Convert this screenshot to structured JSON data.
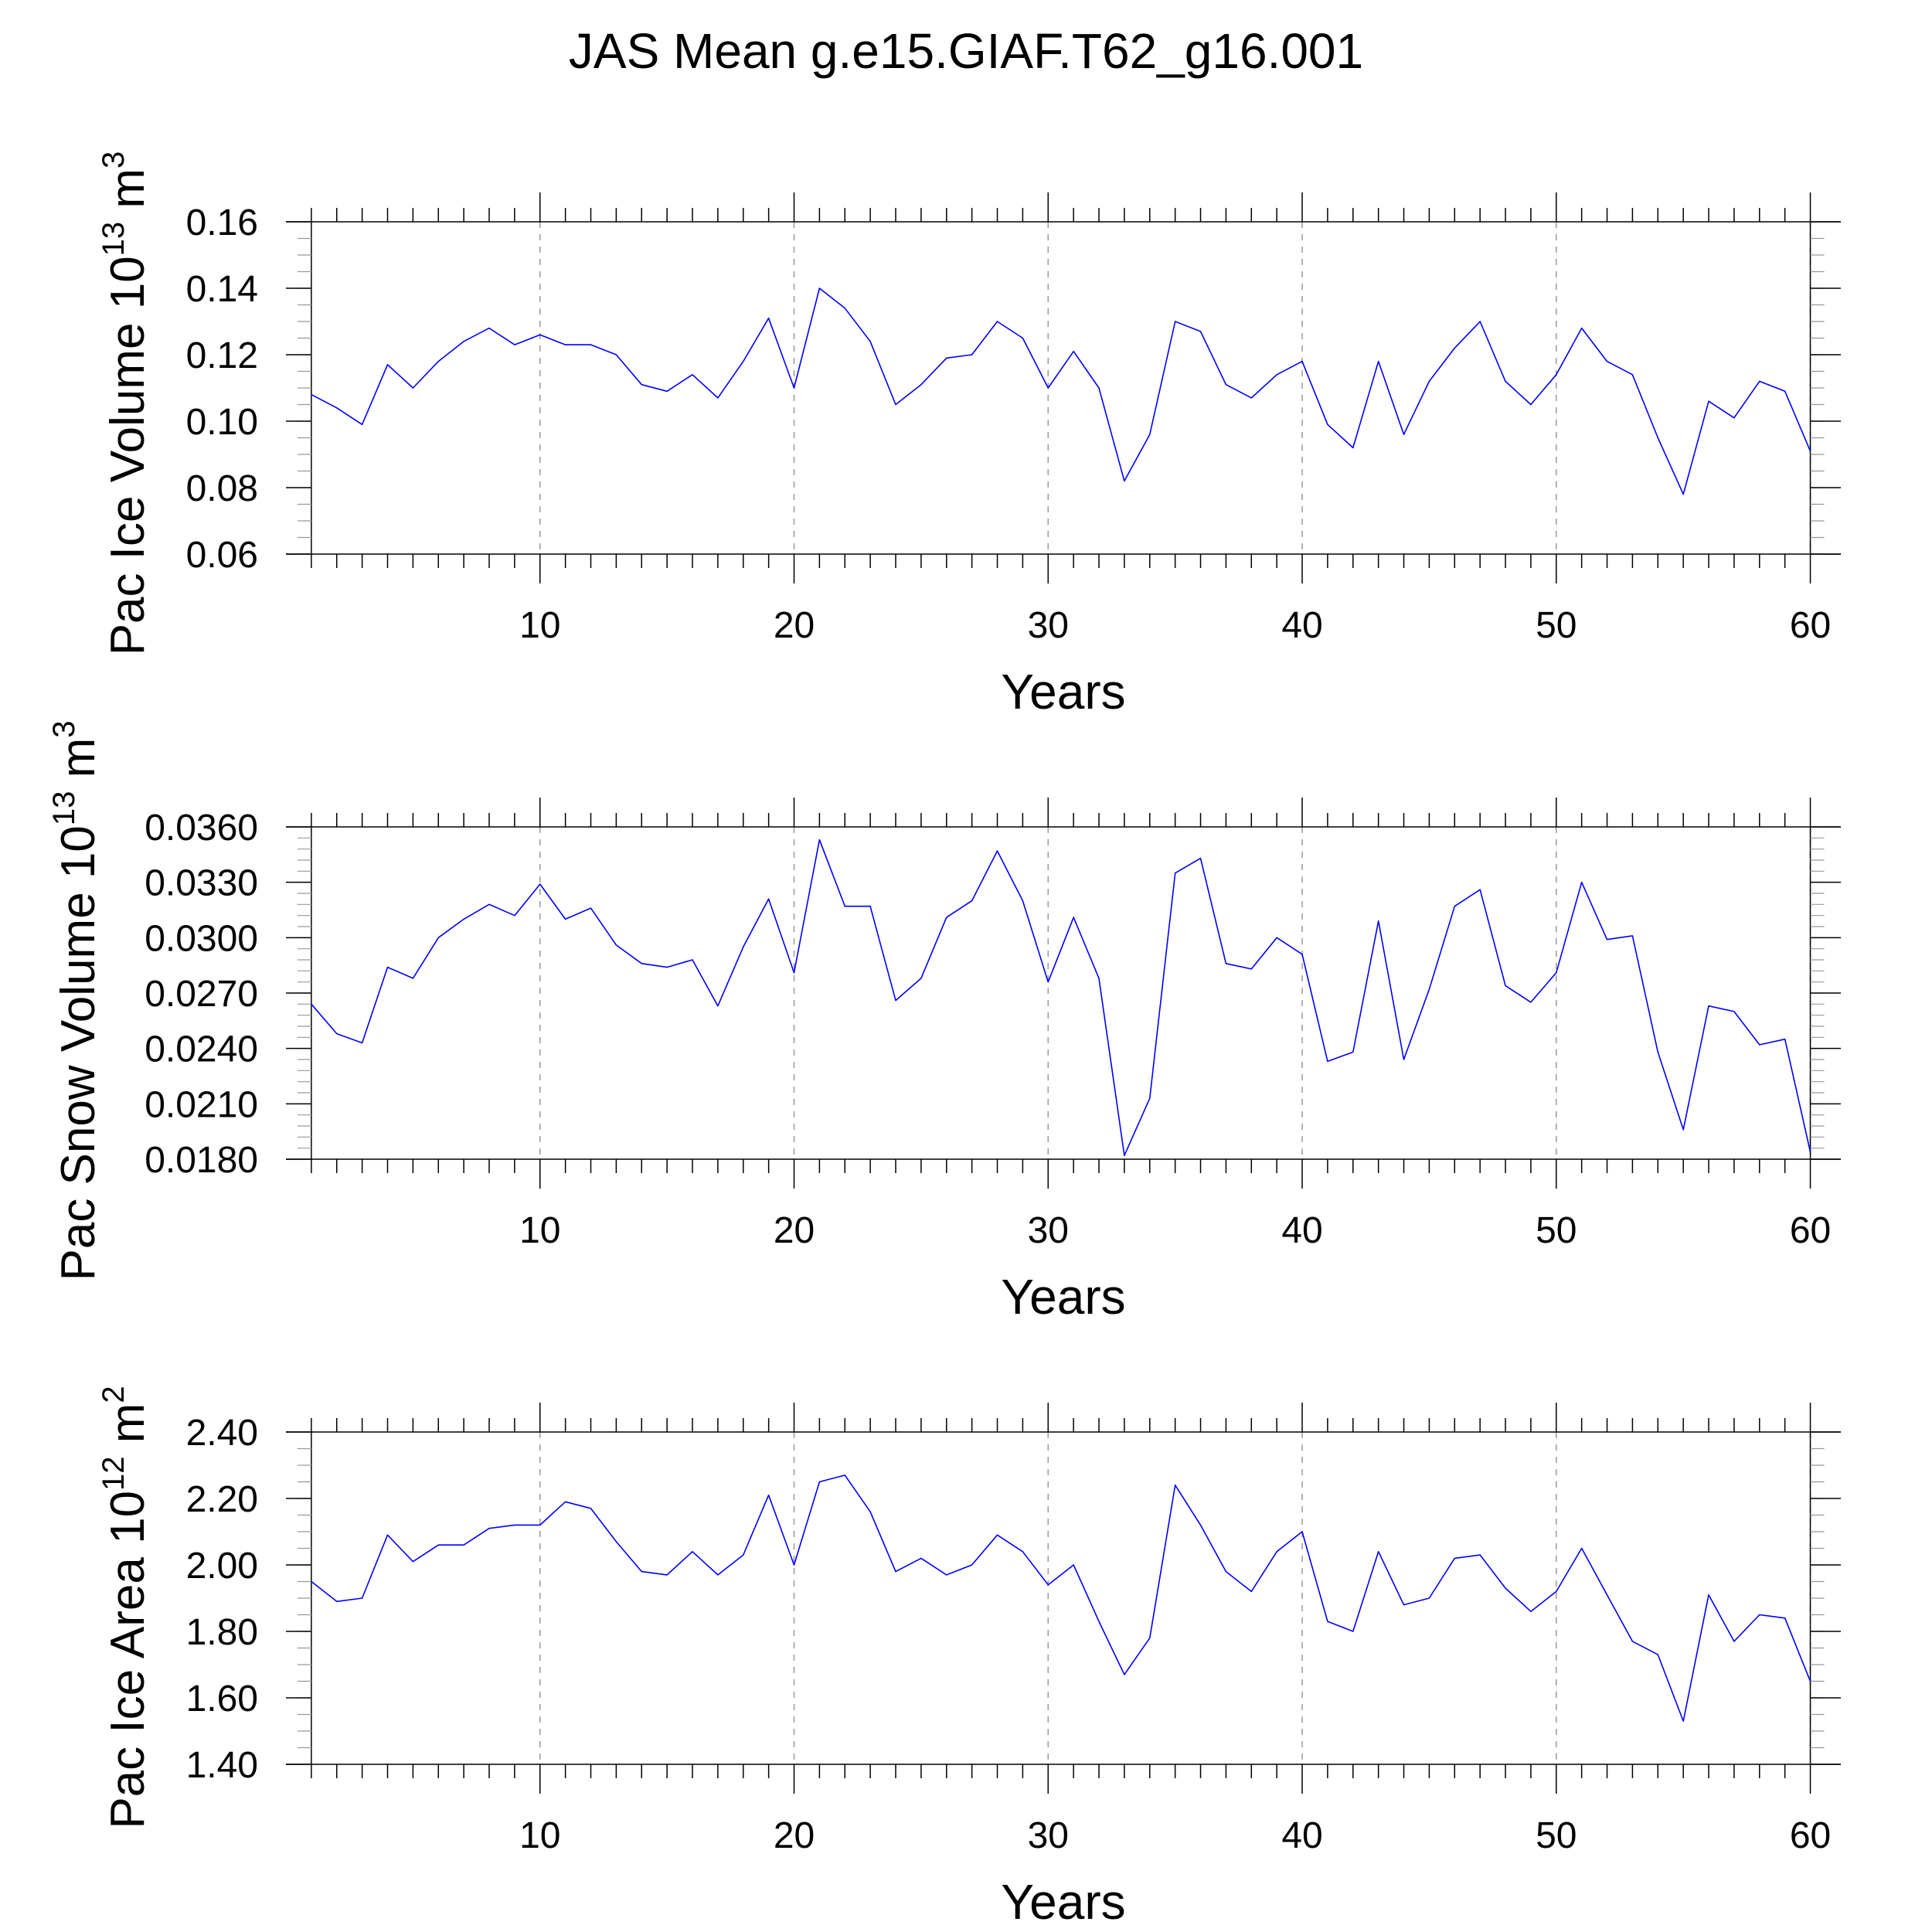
{
  "title": "JAS Mean g.e15.GIAF.T62_g16.001",
  "colors": {
    "series": "#0000ff",
    "axis": "#000000",
    "grid": "#999999",
    "background": "#ffffff"
  },
  "chart_data": [
    {
      "type": "line",
      "ylabel": "Pac Ice Volume 10",
      "ylabel_exponent": "13",
      "ylabel_unit": "m",
      "ylabel_unit_exponent": "3",
      "xlabel": "Years",
      "xlim": [
        0,
        61.2
      ],
      "ylim": [
        0.06,
        0.16
      ],
      "x_ticks": [
        10,
        20,
        30,
        40,
        50,
        60
      ],
      "x_tick_labels": [
        "10",
        "20",
        "30",
        "40",
        "50",
        "60"
      ],
      "y_ticks": [
        0.06,
        0.08,
        0.1,
        0.12,
        0.14,
        0.16
      ],
      "y_tick_labels": [
        "0.06",
        "0.08",
        "0.10",
        "0.12",
        "0.14",
        "0.16"
      ],
      "y_minor_step": 0.005,
      "grid": "vertical dashed at major x ticks",
      "series": [
        {
          "name": "Pac Ice Volume",
          "x": [
            1,
            2,
            3,
            4,
            5,
            6,
            7,
            8,
            9,
            10,
            11,
            12,
            13,
            14,
            15,
            16,
            17,
            18,
            19,
            20,
            21,
            22,
            23,
            24,
            25,
            26,
            27,
            28,
            29,
            30,
            31,
            32,
            33,
            34,
            35,
            36,
            37,
            38,
            39,
            40,
            41,
            42,
            43,
            44,
            45,
            46,
            47,
            48,
            49,
            50,
            51,
            52,
            53,
            54,
            55,
            56,
            57,
            58,
            59,
            60
          ],
          "values": [
            0.108,
            0.104,
            0.099,
            0.117,
            0.11,
            0.118,
            0.124,
            0.128,
            0.123,
            0.126,
            0.123,
            0.123,
            0.12,
            0.111,
            0.109,
            0.114,
            0.107,
            0.118,
            0.131,
            0.11,
            0.14,
            0.134,
            0.124,
            0.105,
            0.111,
            0.119,
            0.12,
            0.13,
            0.125,
            0.11,
            0.121,
            0.11,
            0.082,
            0.096,
            0.13,
            0.127,
            0.111,
            0.107,
            0.114,
            0.118,
            0.099,
            0.092,
            0.118,
            0.096,
            0.112,
            0.122,
            0.13,
            0.112,
            0.105,
            0.114,
            0.128,
            0.118,
            0.114,
            0.095,
            0.078,
            0.106,
            0.101,
            0.112,
            0.109,
            0.091
          ]
        }
      ]
    },
    {
      "type": "line",
      "ylabel": "Pac Snow Volume 10",
      "ylabel_exponent": "13",
      "ylabel_unit": "m",
      "ylabel_unit_exponent": "3",
      "xlabel": "Years",
      "xlim": [
        0,
        61.2
      ],
      "ylim": [
        0.018,
        0.036
      ],
      "x_ticks": [
        10,
        20,
        30,
        40,
        50,
        60
      ],
      "x_tick_labels": [
        "10",
        "20",
        "30",
        "40",
        "50",
        "60"
      ],
      "y_ticks": [
        0.018,
        0.021,
        0.024,
        0.027,
        0.03,
        0.033,
        0.036
      ],
      "y_tick_labels": [
        "0.0180",
        "0.0210",
        "0.0240",
        "0.0270",
        "0.0300",
        "0.0330",
        "0.0360"
      ],
      "y_minor_step": 0.0006,
      "grid": "vertical dashed at major x ticks",
      "series": [
        {
          "name": "Pac Snow Volume",
          "x": [
            1,
            2,
            3,
            4,
            5,
            6,
            7,
            8,
            9,
            10,
            11,
            12,
            13,
            14,
            15,
            16,
            17,
            18,
            19,
            20,
            21,
            22,
            23,
            24,
            25,
            26,
            27,
            28,
            29,
            30,
            31,
            32,
            33,
            34,
            35,
            36,
            37,
            38,
            39,
            40,
            41,
            42,
            43,
            44,
            45,
            46,
            47,
            48,
            49,
            50,
            51,
            52,
            53,
            54,
            55,
            56,
            57,
            58,
            59,
            60
          ],
          "values": [
            0.0264,
            0.0248,
            0.0243,
            0.0284,
            0.0278,
            0.03,
            0.031,
            0.0318,
            0.0312,
            0.0329,
            0.031,
            0.0316,
            0.0296,
            0.0286,
            0.0284,
            0.0288,
            0.0263,
            0.0295,
            0.0321,
            0.0281,
            0.0353,
            0.0317,
            0.0317,
            0.0266,
            0.0278,
            0.0311,
            0.032,
            0.0347,
            0.032,
            0.0276,
            0.0311,
            0.0278,
            0.0182,
            0.0213,
            0.0335,
            0.0343,
            0.0286,
            0.0283,
            0.03,
            0.0291,
            0.0233,
            0.0238,
            0.0309,
            0.0234,
            0.0272,
            0.0317,
            0.0326,
            0.0274,
            0.0265,
            0.0281,
            0.033,
            0.0299,
            0.0301,
            0.0238,
            0.0196,
            0.0263,
            0.026,
            0.0242,
            0.0245,
            0.0184
          ]
        }
      ]
    },
    {
      "type": "line",
      "ylabel": "Pac Ice Area 10",
      "ylabel_exponent": "12",
      "ylabel_unit": "m",
      "ylabel_unit_exponent": "2",
      "xlabel": "Years",
      "xlim": [
        0,
        61.2
      ],
      "ylim": [
        1.4,
        2.4
      ],
      "x_ticks": [
        10,
        20,
        30,
        40,
        50,
        60
      ],
      "x_tick_labels": [
        "10",
        "20",
        "30",
        "40",
        "50",
        "60"
      ],
      "y_ticks": [
        1.4,
        1.6,
        1.8,
        2.0,
        2.2,
        2.4
      ],
      "y_tick_labels": [
        "1.40",
        "1.60",
        "1.80",
        "2.00",
        "2.20",
        "2.40"
      ],
      "y_minor_step": 0.05,
      "grid": "vertical dashed at major x ticks",
      "series": [
        {
          "name": "Pac Ice Area",
          "x": [
            1,
            2,
            3,
            4,
            5,
            6,
            7,
            8,
            9,
            10,
            11,
            12,
            13,
            14,
            15,
            16,
            17,
            18,
            19,
            20,
            21,
            22,
            23,
            24,
            25,
            26,
            27,
            28,
            29,
            30,
            31,
            32,
            33,
            34,
            35,
            36,
            37,
            38,
            39,
            40,
            41,
            42,
            43,
            44,
            45,
            46,
            47,
            48,
            49,
            50,
            51,
            52,
            53,
            54,
            55,
            56,
            57,
            58,
            59,
            60
          ],
          "values": [
            1.95,
            1.89,
            1.9,
            2.09,
            2.01,
            2.06,
            2.06,
            2.11,
            2.12,
            2.12,
            2.19,
            2.17,
            2.07,
            1.98,
            1.97,
            2.04,
            1.97,
            2.03,
            2.21,
            2.0,
            2.25,
            2.27,
            2.16,
            1.98,
            2.02,
            1.97,
            2.0,
            2.09,
            2.04,
            1.94,
            2.0,
            1.83,
            1.67,
            1.78,
            2.24,
            2.12,
            1.98,
            1.92,
            2.04,
            2.1,
            1.83,
            1.8,
            2.04,
            1.88,
            1.9,
            2.02,
            2.03,
            1.93,
            1.86,
            1.92,
            2.05,
            1.91,
            1.77,
            1.73,
            1.53,
            1.91,
            1.77,
            1.85,
            1.84,
            1.65
          ]
        }
      ]
    }
  ]
}
